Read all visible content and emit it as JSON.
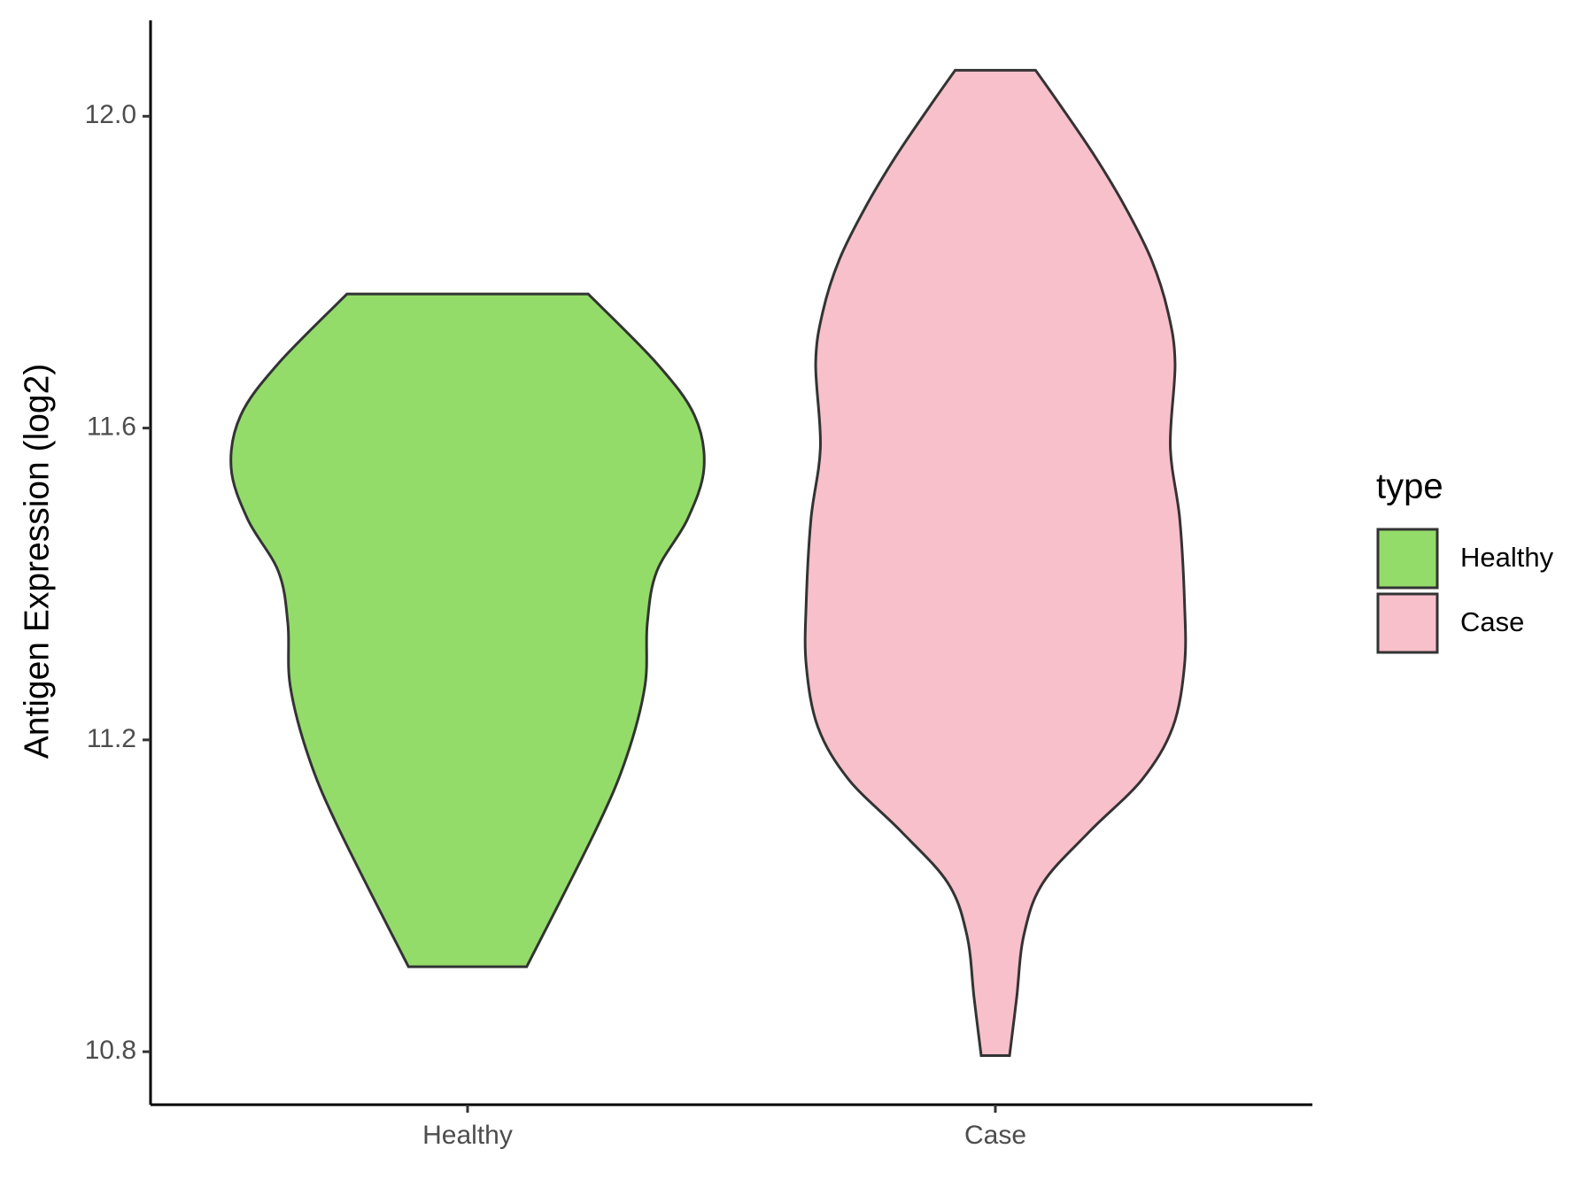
{
  "chart_data": {
    "type": "violin",
    "ylabel": "Antigen Expression (log2)",
    "categories": [
      "Healthy",
      "Case"
    ],
    "legend_title": "type",
    "legend": "right",
    "ylim": [
      10.732,
      12.123
    ],
    "yticks": [
      10.8,
      11.2,
      11.6,
      {
        "value": 12,
        "label": "12.0"
      }
    ],
    "series": [
      {
        "name": "Healthy",
        "color": "#93dc6a",
        "y": [
          11.772,
          11.683,
          11.616,
          11.549,
          11.483,
          11.416,
          11.349,
          11.269,
          11.176,
          11.083,
          10.909
        ],
        "widths": [
          0.51,
          0.8,
          0.96,
          1.0,
          0.93,
          0.8,
          0.76,
          0.75,
          0.67,
          0.54,
          0.25
        ]
      },
      {
        "name": "Case",
        "color": "#f7c0cb",
        "y": [
          12.059,
          12.016,
          11.949,
          11.883,
          11.816,
          11.749,
          11.683,
          11.576,
          11.483,
          11.376,
          11.296,
          11.216,
          11.149,
          11.083,
          11.016,
          10.949,
          10.869,
          10.795
        ],
        "widths": [
          0.17,
          0.27,
          0.42,
          0.55,
          0.66,
          0.73,
          0.76,
          0.74,
          0.78,
          0.8,
          0.8,
          0.75,
          0.62,
          0.4,
          0.2,
          0.12,
          0.09,
          0.06
        ]
      }
    ]
  }
}
